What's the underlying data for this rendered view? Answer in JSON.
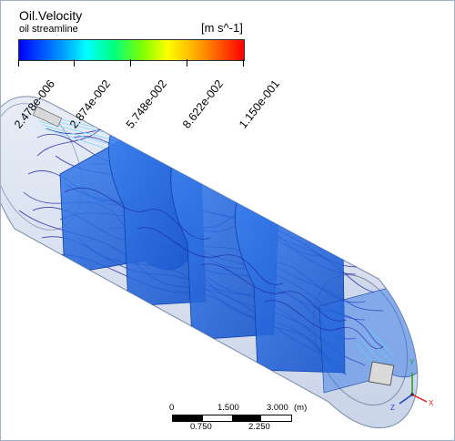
{
  "legend": {
    "title": "Oil.Velocity",
    "subtitle": "oil streamline",
    "unit": "[m s^-1]",
    "ticks": [
      "2.478e-006",
      "2.874e-002",
      "5.748e-002",
      "8.622e-002",
      "1.150e-001"
    ]
  },
  "scale_bar": {
    "top_labels": [
      "0",
      "1.500",
      "3.000",
      "(m)"
    ],
    "bottom_labels": [
      "0.750",
      "2.250"
    ]
  },
  "axes": {
    "x": "X",
    "y": "Y",
    "z": "Z"
  },
  "colors": {
    "baffle": "#1f66e0",
    "streamline": "#1a1aa8",
    "shell": "#c8d4ea",
    "axis_x": "#e02020",
    "axis_y": "#20a020",
    "axis_z": "#2040e0"
  }
}
